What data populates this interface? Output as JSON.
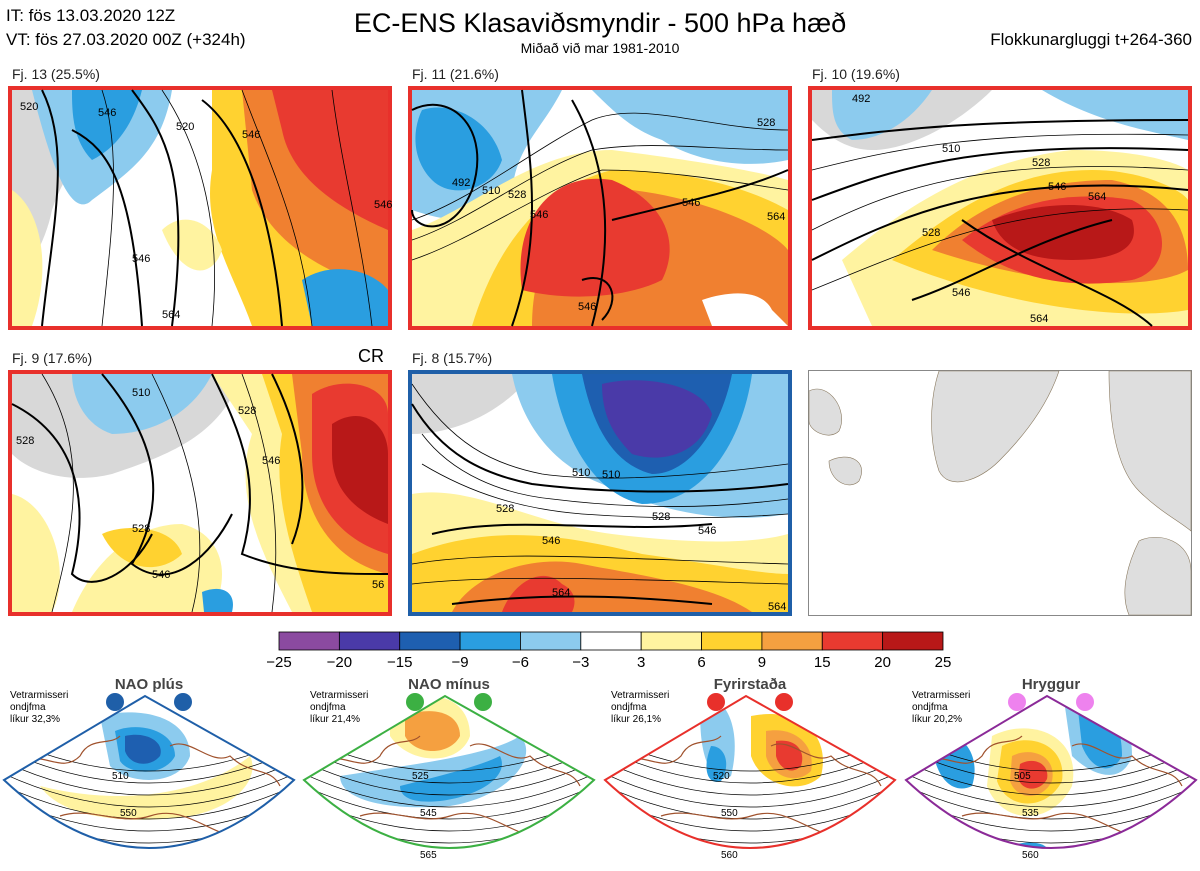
{
  "header": {
    "it_line": "IT: fös 13.03.2020 12Z",
    "vt_line": "VT: fös 27.03.2020 00Z  (+324h)",
    "title": "EC-ENS Klasaviðsmyndir - 500 hPa hæð",
    "subtitle": "Miðað við mar 1981-2010",
    "window": "Flokkunargluggi t+264-360"
  },
  "panels": [
    {
      "label": "Fj. 13 (25.5%)",
      "frame_color": "#e8302b",
      "contours": [
        "520",
        "546",
        "546",
        "546",
        "564",
        "546"
      ]
    },
    {
      "label": "Fj. 11 (21.6%)",
      "frame_color": "#e8302b",
      "contours": [
        "492",
        "510",
        "528",
        "546",
        "546",
        "546",
        "528",
        "564"
      ]
    },
    {
      "label": "Fj. 10 (19.6%)",
      "frame_color": "#e8302b",
      "contours": [
        "492",
        "510",
        "528",
        "546",
        "564",
        "528",
        "546",
        "564"
      ]
    },
    {
      "label": "Fj. 9 (17.6%)",
      "frame_color": "#e8302b",
      "contours": [
        "528",
        "510",
        "528",
        "546",
        "528",
        "546",
        "56"
      ],
      "extra": "CR"
    },
    {
      "label": "Fj. 8 (15.7%)",
      "frame_color": "#1f5fa8",
      "contours": [
        "510",
        "528",
        "546",
        "528",
        "546",
        "564",
        "510",
        "564"
      ]
    }
  ],
  "colorbar": {
    "ticks": [
      "−25",
      "−20",
      "−15",
      "−9",
      "−6",
      "−3",
      "3",
      "6",
      "9",
      "15",
      "20",
      "25"
    ],
    "colors": [
      "#8b4aa0",
      "#4a3aa8",
      "#1e5fb0",
      "#2a9ee0",
      "#8ccbee",
      "#ffffff",
      "#fff3a0",
      "#ffd230",
      "#f5a040",
      "#f08030",
      "#e83a30",
      "#b81818"
    ]
  },
  "regimes": [
    {
      "name": "NAO plús",
      "note": [
        "Vetrarmisseri",
        "ondjfma",
        "líkur 32,3%"
      ],
      "border": "#1f5fa8",
      "dot_color": "#1f5fa8",
      "labels": [
        "510",
        "550"
      ]
    },
    {
      "name": "NAO mínus",
      "note": [
        "Vetrarmisseri",
        "ondjfma",
        "líkur 21,4%"
      ],
      "border": "#3cb043",
      "dot_color": "#3cb043",
      "labels": [
        "525",
        "545",
        "565"
      ]
    },
    {
      "name": "Fyrirstaða",
      "note": [
        "Vetrarmisseri",
        "ondjfma",
        "líkur 26,1%"
      ],
      "border": "#e8302b",
      "dot_color": "#e8302b",
      "labels": [
        "520",
        "550",
        "560"
      ]
    },
    {
      "name": "Hryggur",
      "note": [
        "Vetrarmisseri",
        "ondjfma",
        "líkur 20,2%"
      ],
      "border": "#8b2a98",
      "dot_color": "#ee82ee",
      "labels": [
        "505",
        "535",
        "560"
      ]
    }
  ]
}
